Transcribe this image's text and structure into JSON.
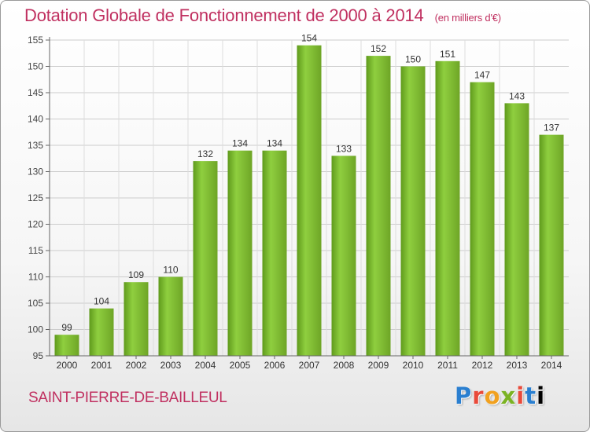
{
  "title": "Dotation Globale de Fonctionnement de 2000 à 2014",
  "unit_note": "(en milliers d'€)",
  "commune": "SAINT-PIERRE-DE-BAILLEUL",
  "logo": {
    "letters": [
      "P",
      "r",
      "o",
      "x",
      "i",
      "t",
      "i"
    ]
  },
  "colors": {
    "bar": "#7bbf2e",
    "bar_dark": "#5f9a1c",
    "title": "#c03060",
    "grid": "#cccccc"
  },
  "chart_data": {
    "type": "bar",
    "title": "Dotation Globale de Fonctionnement de 2000 à 2014",
    "xlabel": "",
    "ylabel": "",
    "categories": [
      "2000",
      "2001",
      "2002",
      "2003",
      "2004",
      "2005",
      "2006",
      "2007",
      "2008",
      "2009",
      "2010",
      "2011",
      "2012",
      "2013",
      "2014"
    ],
    "values": [
      99,
      104,
      109,
      110,
      132,
      134,
      134,
      154,
      133,
      152,
      150,
      151,
      147,
      143,
      137
    ],
    "ylim": [
      95,
      155
    ],
    "yticks": [
      95,
      100,
      105,
      110,
      115,
      120,
      125,
      130,
      135,
      140,
      145,
      150,
      155
    ],
    "grid": true,
    "data_labels": true
  }
}
